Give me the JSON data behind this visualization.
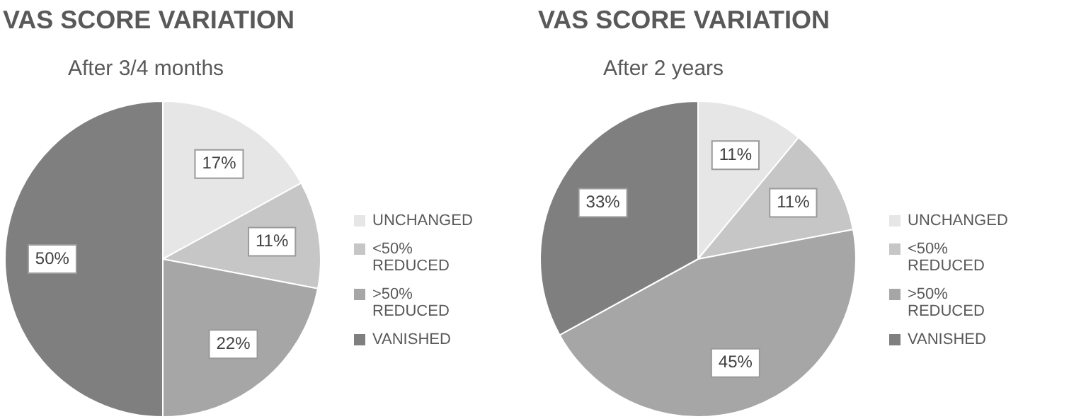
{
  "chart_data": [
    {
      "type": "pie",
      "title": "VAS SCORE VARIATION",
      "subtitle": "After 3/4 months",
      "categories": [
        "UNCHANGED",
        "<50% REDUCED",
        ">50% REDUCED",
        "VANISHED"
      ],
      "values": [
        17,
        11,
        22,
        50
      ],
      "colors": [
        "#e6e6e6",
        "#c6c6c6",
        "#a6a6a6",
        "#7f7f7f"
      ],
      "value_labels": [
        "17%",
        "11%",
        "22%",
        "50%"
      ],
      "legend": "right"
    },
    {
      "type": "pie",
      "title": "VAS SCORE VARIATION",
      "subtitle": "After 2 years",
      "categories": [
        "UNCHANGED",
        "<50% REDUCED",
        ">50% REDUCED",
        "VANISHED"
      ],
      "values": [
        11,
        11,
        45,
        33
      ],
      "colors": [
        "#e6e6e6",
        "#c6c6c6",
        "#a6a6a6",
        "#7f7f7f"
      ],
      "value_labels": [
        "11%",
        "11%",
        "45%",
        "33%"
      ],
      "legend": "right"
    }
  ]
}
